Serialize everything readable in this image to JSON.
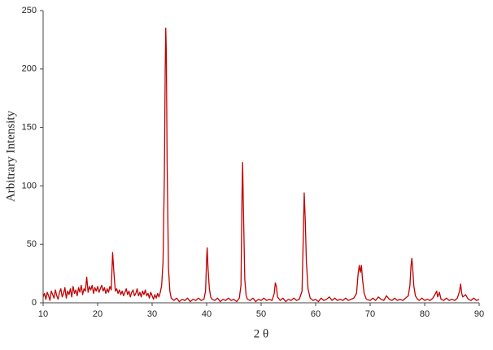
{
  "chart_data": {
    "type": "line",
    "xlabel": "2 θ",
    "ylabel": "Arbitrary Intensity",
    "xlim": [
      10,
      90
    ],
    "xticks": [
      10,
      20,
      30,
      40,
      50,
      60,
      70,
      80,
      90
    ],
    "ylim": [
      0,
      250
    ],
    "yticks": [
      0,
      50,
      100,
      150,
      200,
      250
    ],
    "grid": false,
    "series": [
      {
        "color": "#c00000",
        "x": [
          10,
          10.25,
          10.5,
          10.75,
          11,
          11.25,
          11.5,
          11.75,
          12,
          12.25,
          12.5,
          12.75,
          13,
          13.25,
          13.5,
          13.75,
          14,
          14.25,
          14.5,
          14.75,
          15,
          15.25,
          15.5,
          15.75,
          16,
          16.25,
          16.5,
          16.75,
          17,
          17.25,
          17.5,
          17.75,
          18,
          18.25,
          18.5,
          18.75,
          19,
          19.25,
          19.5,
          19.75,
          20,
          20.25,
          20.5,
          20.75,
          21,
          21.25,
          21.5,
          21.75,
          22,
          22.25,
          22.5,
          22.75,
          23,
          23.25,
          23.5,
          23.75,
          24,
          24.25,
          24.5,
          24.75,
          25,
          25.25,
          25.5,
          25.75,
          26,
          26.25,
          26.5,
          26.75,
          27,
          27.25,
          27.5,
          27.75,
          28,
          28.25,
          28.5,
          28.75,
          29,
          29.25,
          29.5,
          29.75,
          30,
          30.25,
          30.5,
          30.75,
          31,
          31.25,
          31.5,
          31.75,
          32,
          32.25,
          32.4,
          32.5,
          32.6,
          32.75,
          33,
          33.25,
          33.5,
          34,
          34.5,
          35,
          35.5,
          36,
          36.5,
          37,
          37.5,
          38,
          38.5,
          39,
          39.5,
          39.8,
          40,
          40.1,
          40.25,
          40.5,
          40.75,
          41,
          41.5,
          42,
          42.5,
          43,
          43.5,
          44,
          44.5,
          45,
          45.5,
          46,
          46.3,
          46.5,
          46.6,
          46.75,
          47,
          47.25,
          47.5,
          48,
          48.5,
          49,
          49.5,
          50,
          50.5,
          51,
          51.5,
          52,
          52.4,
          52.6,
          52.8,
          53,
          53.5,
          54,
          54.5,
          55,
          55.5,
          56,
          56.5,
          57,
          57.5,
          57.75,
          57.9,
          58.1,
          58.3,
          58.6,
          59,
          59.5,
          60,
          60.5,
          61,
          61.5,
          62,
          62.5,
          63,
          63.5,
          64,
          64.5,
          65,
          65.5,
          66,
          66.5,
          67,
          67.5,
          67.8,
          68,
          68.2,
          68.4,
          68.6,
          68.9,
          69.3,
          70,
          70.5,
          71,
          71.5,
          72,
          72.5,
          73,
          73.5,
          74,
          74.5,
          75,
          75.5,
          76,
          76.5,
          77,
          77.3,
          77.5,
          77.65,
          77.8,
          78,
          78.3,
          78.7,
          79,
          79.5,
          80,
          80.5,
          81,
          81.5,
          82,
          82.2,
          82.4,
          82.7,
          83,
          83.5,
          84,
          84.5,
          85,
          85.5,
          86,
          86.4,
          86.6,
          86.8,
          87,
          87.5,
          88,
          88.5,
          89,
          89.5,
          90
        ],
        "values": [
          5,
          8,
          3,
          9,
          6,
          2,
          10,
          7,
          4,
          11,
          6,
          3,
          9,
          12,
          5,
          8,
          13,
          4,
          10,
          7,
          12,
          5,
          14,
          8,
          11,
          6,
          13,
          9,
          15,
          7,
          12,
          10,
          22,
          9,
          14,
          11,
          15,
          8,
          13,
          10,
          14,
          9,
          12,
          15,
          10,
          13,
          8,
          12,
          9,
          14,
          11,
          43,
          25,
          10,
          12,
          8,
          11,
          7,
          10,
          6,
          9,
          12,
          7,
          10,
          5,
          9,
          11,
          6,
          8,
          12,
          6,
          9,
          5,
          10,
          7,
          11,
          6,
          8,
          4,
          9,
          6,
          3,
          7,
          4,
          8,
          5,
          9,
          15,
          35,
          110,
          200,
          235,
          215,
          120,
          30,
          10,
          4,
          2,
          4,
          1,
          3,
          2,
          4,
          1,
          3,
          2,
          4,
          2,
          3,
          10,
          38,
          47,
          30,
          12,
          5,
          3,
          2,
          4,
          1,
          3,
          2,
          4,
          2,
          3,
          1,
          4,
          15,
          95,
          120,
          80,
          20,
          6,
          3,
          2,
          4,
          1,
          3,
          2,
          4,
          2,
          3,
          2,
          8,
          17,
          14,
          5,
          2,
          4,
          1,
          3,
          2,
          4,
          2,
          3,
          10,
          60,
          94,
          70,
          35,
          12,
          4,
          2,
          3,
          1,
          4,
          2,
          3,
          5,
          2,
          4,
          2,
          3,
          2,
          4,
          2,
          3,
          4,
          8,
          25,
          32,
          26,
          32,
          20,
          8,
          3,
          2,
          4,
          2,
          5,
          3,
          2,
          6,
          3,
          2,
          4,
          2,
          3,
          2,
          4,
          6,
          15,
          32,
          38,
          30,
          15,
          6,
          3,
          2,
          4,
          2,
          3,
          2,
          4,
          8,
          10,
          5,
          9,
          3,
          2,
          4,
          2,
          3,
          2,
          4,
          10,
          16,
          8,
          5,
          7,
          3,
          2,
          4,
          2,
          3
        ]
      }
    ]
  }
}
